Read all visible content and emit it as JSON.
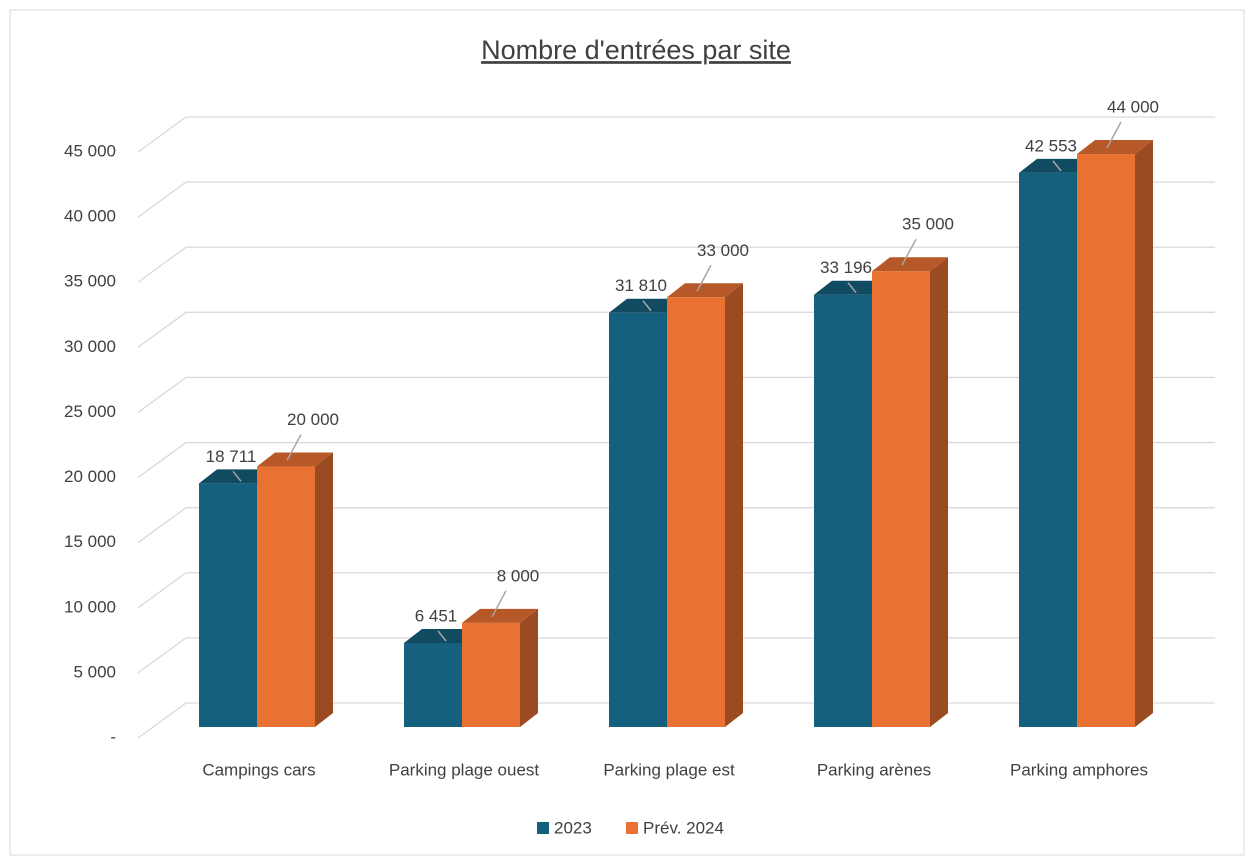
{
  "chart_data": {
    "type": "bar3d",
    "title": "Nombre d'entrées par site",
    "categories": [
      "Campings cars",
      "Parking plage ouest",
      "Parking plage est",
      "Parking arènes",
      "Parking amphores"
    ],
    "series": [
      {
        "name": "2023",
        "color": "#15607e",
        "values": [
          18711,
          6451,
          31810,
          33196,
          42553
        ],
        "value_labels": [
          "18 711",
          "6 451",
          "31 810",
          "33 196",
          "42 553"
        ]
      },
      {
        "name": "Prév. 2024",
        "color": "#e97132",
        "values": [
          20000,
          8000,
          33000,
          35000,
          44000
        ],
        "value_labels": [
          "20 000",
          "8 000",
          "33 000",
          "35 000",
          "44 000"
        ]
      }
    ],
    "ylim": [
      0,
      45000
    ],
    "yticks": [
      {
        "value": 0,
        "label": "-"
      },
      {
        "value": 5000,
        "label": "5 000"
      },
      {
        "value": 10000,
        "label": "10 000"
      },
      {
        "value": 15000,
        "label": "15 000"
      },
      {
        "value": 20000,
        "label": "20 000"
      },
      {
        "value": 25000,
        "label": "25 000"
      },
      {
        "value": 30000,
        "label": "30 000"
      },
      {
        "value": 35000,
        "label": "35 000"
      },
      {
        "value": 40000,
        "label": "40 000"
      },
      {
        "value": 45000,
        "label": "45 000"
      }
    ],
    "grid": true,
    "legend": "bottom"
  }
}
